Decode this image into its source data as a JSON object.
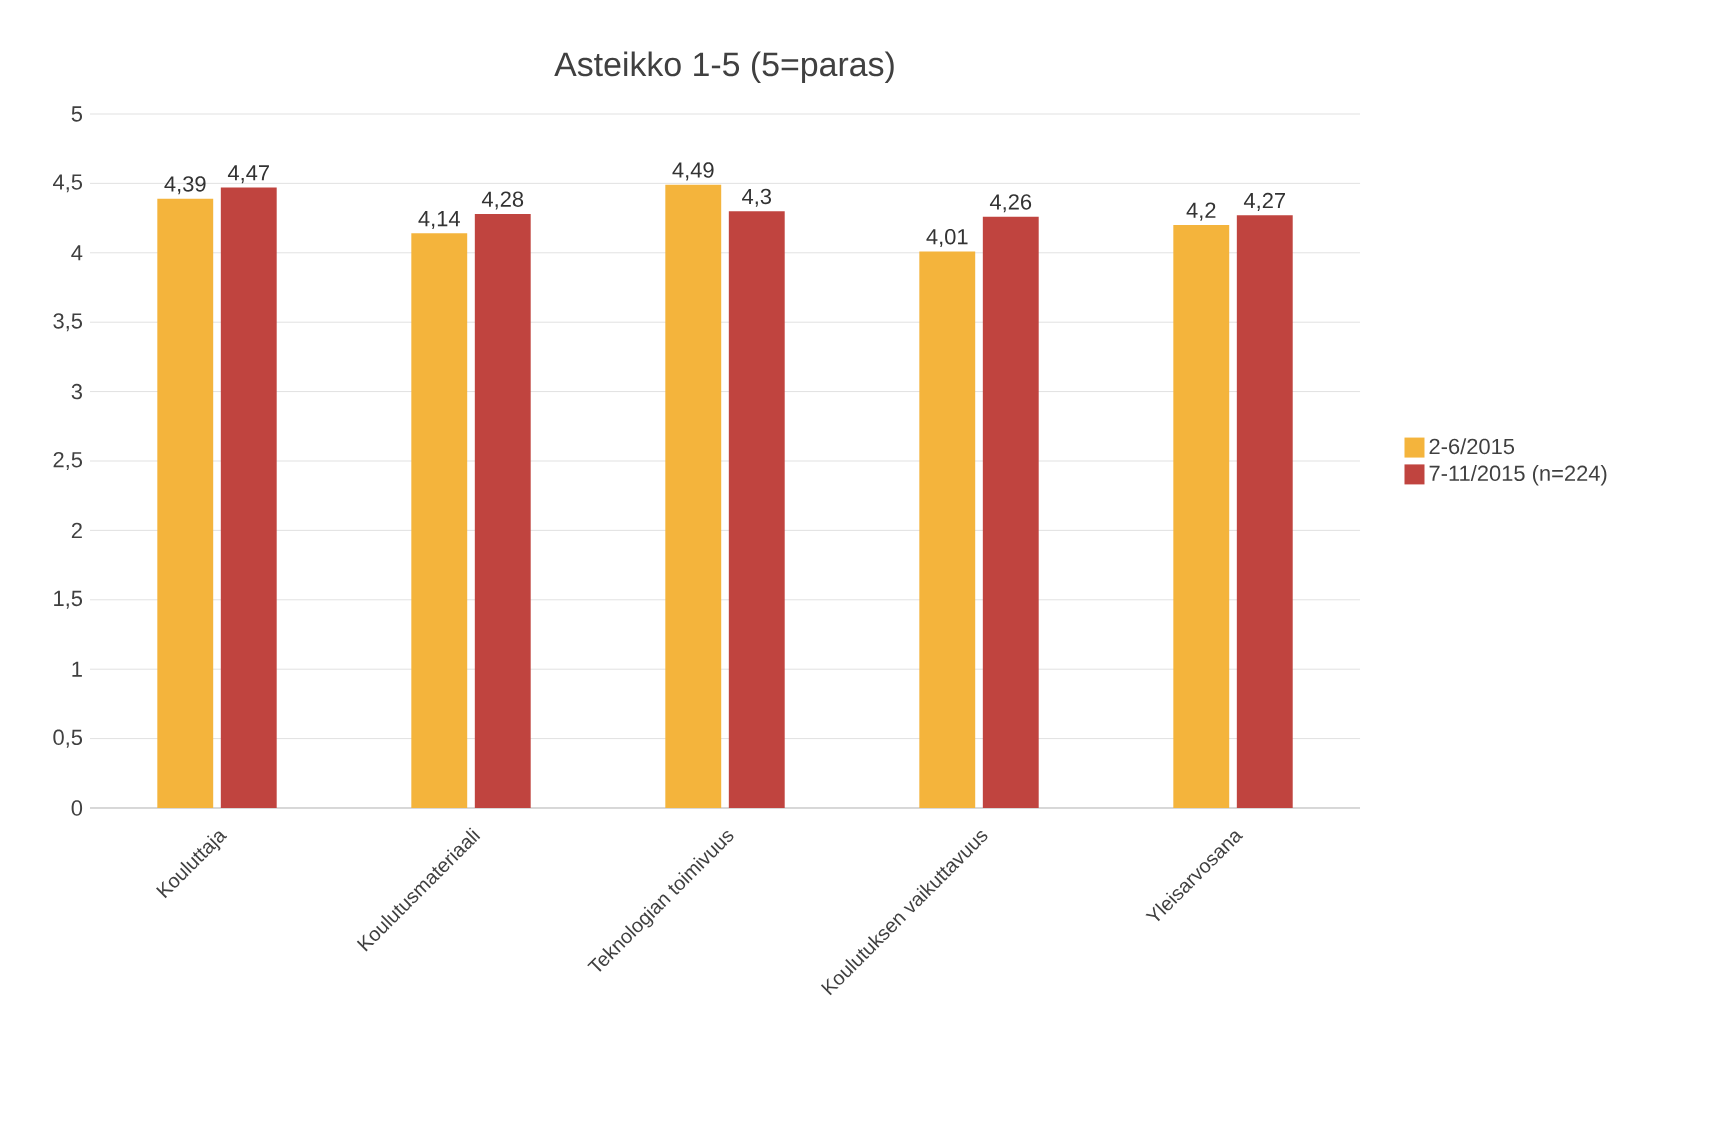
{
  "chart_data": {
    "type": "bar",
    "title": "Asteikko 1-5 (5=paras)",
    "categories": [
      "Kouluttaja",
      "Koulutusmateriaali",
      "Teknologian toimivuus",
      "Koulutuksen vaikuttavuus",
      "Yleisarvosana"
    ],
    "series": [
      {
        "name": "2-6/2015",
        "color": "#f4b43c",
        "values": [
          4.39,
          4.14,
          4.49,
          4.01,
          4.2
        ],
        "value_labels": [
          "4,39",
          "4,14",
          "4,49",
          "4,01",
          "4,2"
        ]
      },
      {
        "name": "7-11/2015 (n=224)",
        "color": "#c0443f",
        "values": [
          4.47,
          4.28,
          4.3,
          4.26,
          4.27
        ],
        "value_labels": [
          "4,47",
          "4,28",
          "4,3",
          "4,26",
          "4,27"
        ]
      }
    ],
    "ylim": [
      0,
      5
    ],
    "yticks": [
      0,
      {
        "value": 0.5,
        "label": "0,5"
      },
      1,
      {
        "value": 1.5,
        "label": "1,5"
      },
      2,
      {
        "value": 2.5,
        "label": "2,5"
      },
      3,
      {
        "value": 3.5,
        "label": "3,5"
      },
      4,
      {
        "value": 4.5,
        "label": "4,5"
      },
      5
    ],
    "grid": "y",
    "legend": "right"
  }
}
